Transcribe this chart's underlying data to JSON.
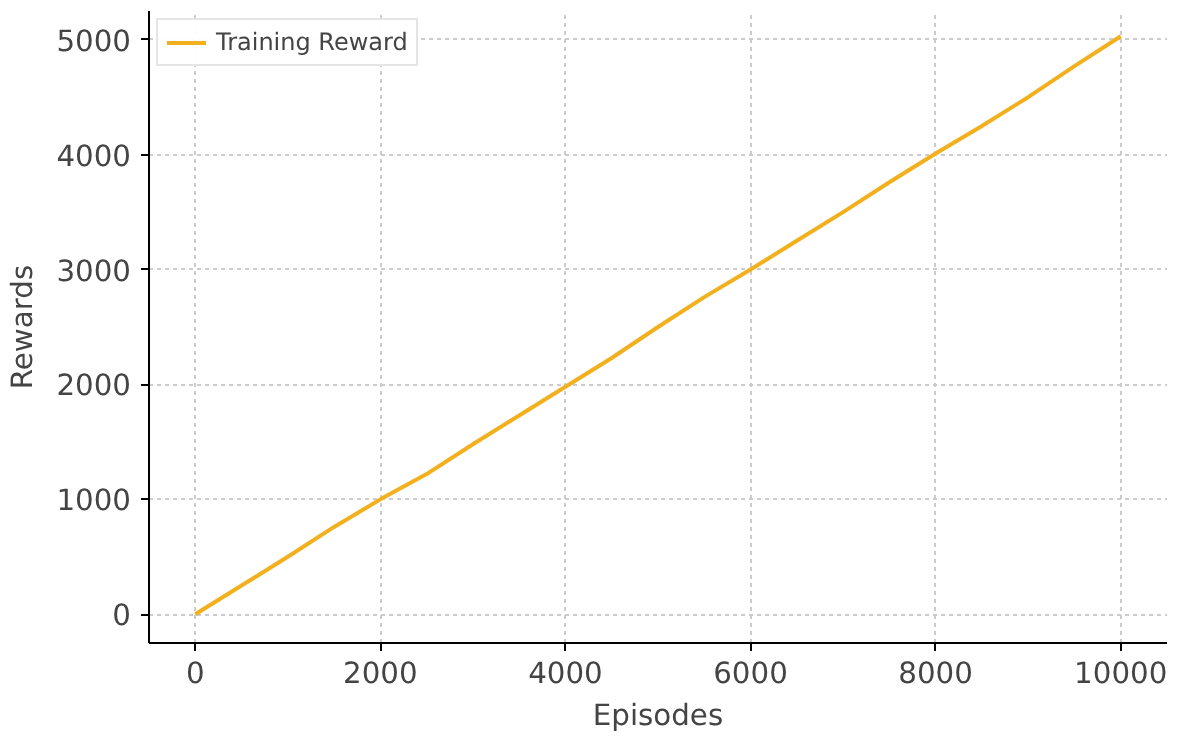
{
  "chart_data": {
    "type": "line",
    "xlabel": "Episodes",
    "ylabel": "Rewards",
    "x": [
      0,
      500,
      1000,
      1500,
      2000,
      2500,
      3000,
      3500,
      4000,
      4500,
      5000,
      5500,
      6000,
      6500,
      7000,
      7500,
      8000,
      8500,
      9000,
      9500,
      10000
    ],
    "series": [
      {
        "name": "Training Reward",
        "color": "#f2b01e",
        "values": [
          0,
          250,
          500,
          760,
          1000,
          1220,
          1480,
          1730,
          1980,
          2230,
          2500,
          2760,
          3000,
          3250,
          3500,
          3760,
          4010,
          4250,
          4500,
          4770,
          5030
        ]
      }
    ],
    "xlim": [
      -500,
      10500
    ],
    "ylim": [
      -250,
      5250
    ],
    "xticks": [
      0,
      2000,
      4000,
      6000,
      8000,
      10000
    ],
    "yticks": [
      0,
      1000,
      2000,
      3000,
      4000,
      5000
    ],
    "grid": true,
    "legend": "top left",
    "line_style": "solid",
    "marker": "none"
  }
}
